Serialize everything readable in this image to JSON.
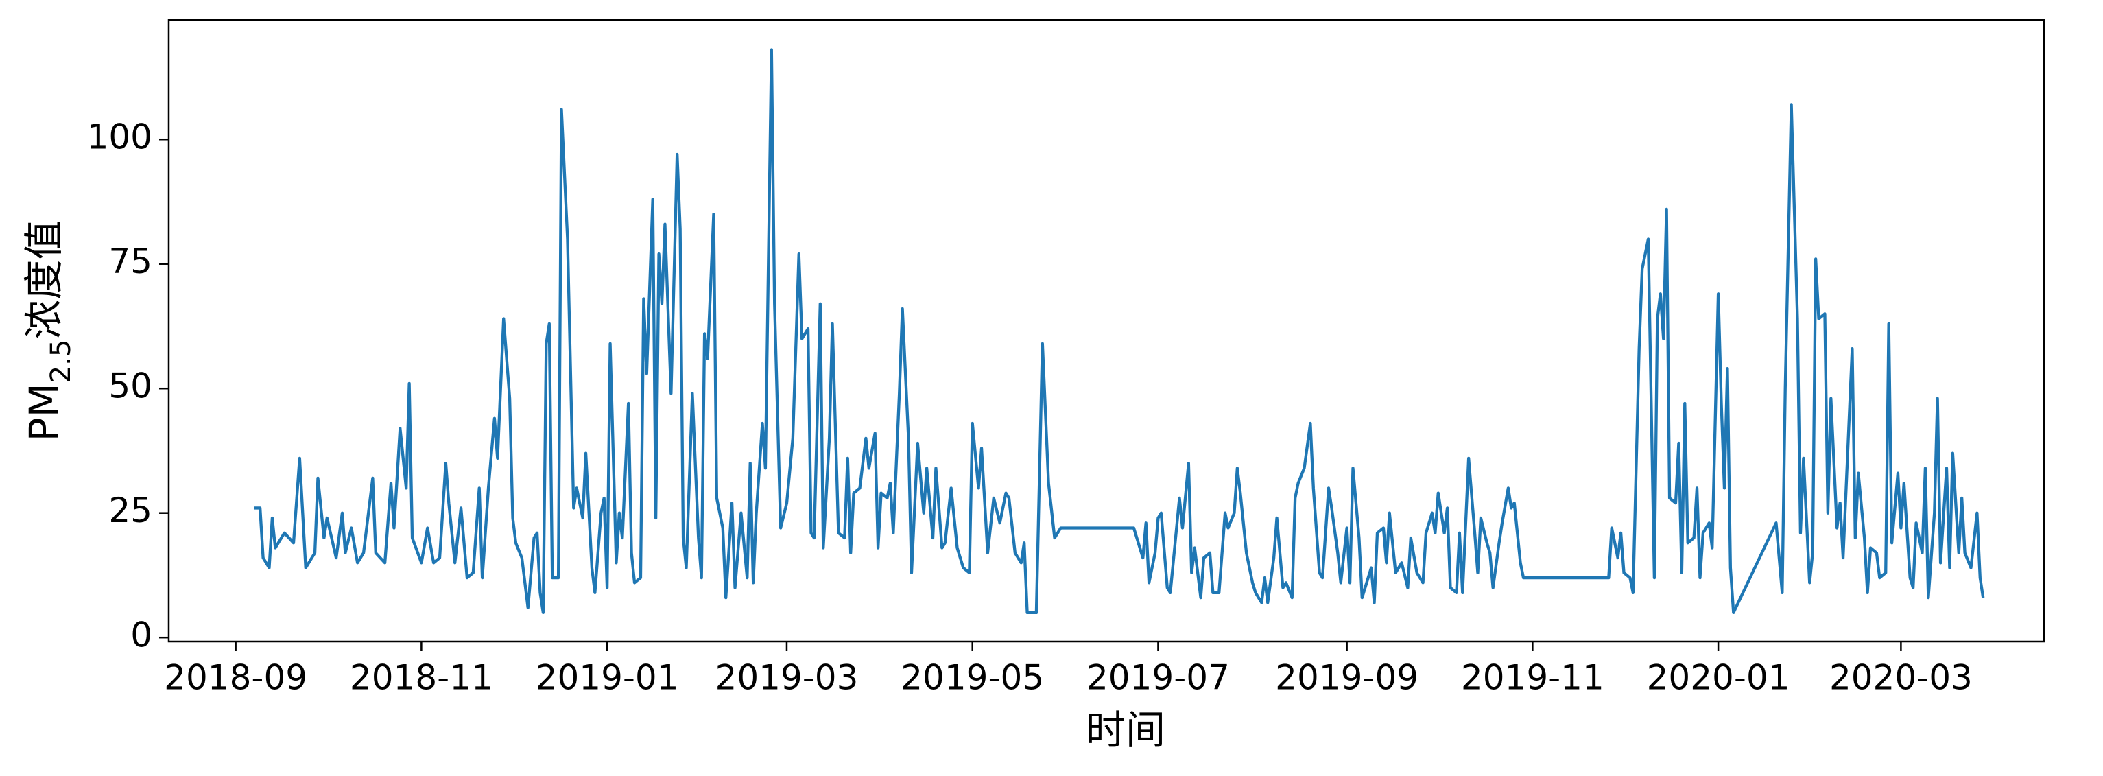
{
  "chart_data": {
    "type": "line",
    "xlabel": "时间",
    "ylabel_parts": [
      "PM",
      "2.5",
      "浓度值"
    ],
    "color": "#1f77b4",
    "xlim": [
      "2018-08-10",
      "2020-04-17"
    ],
    "xticks": [
      "2018-09",
      "2018-11",
      "2019-01",
      "2019-03",
      "2019-05",
      "2019-07",
      "2019-09",
      "2019-11",
      "2020-01",
      "2020-03"
    ],
    "ylim": [
      -0.8,
      124
    ],
    "yticks": [
      0,
      25,
      50,
      75,
      100
    ],
    "grid": false,
    "x": [
      "2018-09-07",
      "2018-09-09",
      "2018-09-10",
      "2018-09-12",
      "2018-09-13",
      "2018-09-14",
      "2018-09-17",
      "2018-09-20",
      "2018-09-22",
      "2018-09-24",
      "2018-09-27",
      "2018-09-28",
      "2018-09-30",
      "2018-10-01",
      "2018-10-04",
      "2018-10-06",
      "2018-10-07",
      "2018-10-09",
      "2018-10-11",
      "2018-10-13",
      "2018-10-16",
      "2018-10-17",
      "2018-10-20",
      "2018-10-22",
      "2018-10-23",
      "2018-10-25",
      "2018-10-27",
      "2018-10-28",
      "2018-10-29",
      "2018-11-01",
      "2018-11-03",
      "2018-11-05",
      "2018-11-07",
      "2018-11-09",
      "2018-11-10",
      "2018-11-12",
      "2018-11-14",
      "2018-11-16",
      "2018-11-18",
      "2018-11-20",
      "2018-11-21",
      "2018-11-23",
      "2018-11-25",
      "2018-11-26",
      "2018-11-28",
      "2018-11-30",
      "2018-12-01",
      "2018-12-02",
      "2018-12-04",
      "2018-12-06",
      "2018-12-08",
      "2018-12-09",
      "2018-12-10",
      "2018-12-11",
      "2018-12-12",
      "2018-12-13",
      "2018-12-14",
      "2018-12-16",
      "2018-12-17",
      "2018-12-19",
      "2018-12-21",
      "2018-12-22",
      "2018-12-24",
      "2018-12-25",
      "2018-12-27",
      "2018-12-28",
      "2018-12-30",
      "2018-12-31",
      "2019-01-01",
      "2019-01-02",
      "2019-01-04",
      "2019-01-05",
      "2019-01-06",
      "2019-01-08",
      "2019-01-09",
      "2019-01-10",
      "2019-01-12",
      "2019-01-13",
      "2019-01-14",
      "2019-01-16",
      "2019-01-17",
      "2019-01-18",
      "2019-01-19",
      "2019-01-20",
      "2019-01-22",
      "2019-01-24",
      "2019-01-25",
      "2019-01-26",
      "2019-01-27",
      "2019-01-29",
      "2019-01-31",
      "2019-02-01",
      "2019-02-02",
      "2019-02-03",
      "2019-02-05",
      "2019-02-06",
      "2019-02-08",
      "2019-02-09",
      "2019-02-11",
      "2019-02-12",
      "2019-02-14",
      "2019-02-16",
      "2019-02-17",
      "2019-02-18",
      "2019-02-19",
      "2019-02-21",
      "2019-02-22",
      "2019-02-24",
      "2019-02-25",
      "2019-02-27",
      "2019-03-01",
      "2019-03-03",
      "2019-03-05",
      "2019-03-06",
      "2019-03-08",
      "2019-03-09",
      "2019-03-10",
      "2019-03-12",
      "2019-03-13",
      "2019-03-15",
      "2019-03-16",
      "2019-03-18",
      "2019-03-20",
      "2019-03-21",
      "2019-03-22",
      "2019-03-23",
      "2019-03-25",
      "2019-03-27",
      "2019-03-28",
      "2019-03-30",
      "2019-03-31",
      "2019-04-01",
      "2019-04-03",
      "2019-04-04",
      "2019-04-05",
      "2019-04-07",
      "2019-04-08",
      "2019-04-10",
      "2019-04-11",
      "2019-04-13",
      "2019-04-15",
      "2019-04-16",
      "2019-04-18",
      "2019-04-19",
      "2019-04-21",
      "2019-04-22",
      "2019-04-24",
      "2019-04-26",
      "2019-04-28",
      "2019-04-30",
      "2019-05-01",
      "2019-05-03",
      "2019-05-04",
      "2019-05-06",
      "2019-05-08",
      "2019-05-10",
      "2019-05-12",
      "2019-05-13",
      "2019-05-15",
      "2019-05-17",
      "2019-05-18",
      "2019-05-19",
      "2019-05-22",
      "2019-05-24",
      "2019-05-26",
      "2019-05-28",
      "2019-05-30",
      "2019-06-23",
      "2019-06-24",
      "2019-06-26",
      "2019-06-27",
      "2019-06-28",
      "2019-06-30",
      "2019-07-01",
      "2019-07-02",
      "2019-07-04",
      "2019-07-05",
      "2019-07-08",
      "2019-07-09",
      "2019-07-11",
      "2019-07-12",
      "2019-07-13",
      "2019-07-15",
      "2019-07-16",
      "2019-07-18",
      "2019-07-19",
      "2019-07-21",
      "2019-07-23",
      "2019-07-24",
      "2019-07-26",
      "2019-07-27",
      "2019-07-28",
      "2019-07-30",
      "2019-08-01",
      "2019-08-02",
      "2019-08-04",
      "2019-08-05",
      "2019-08-06",
      "2019-08-08",
      "2019-08-09",
      "2019-08-11",
      "2019-08-12",
      "2019-08-14",
      "2019-08-15",
      "2019-08-16",
      "2019-08-18",
      "2019-08-20",
      "2019-08-21",
      "2019-08-23",
      "2019-08-24",
      "2019-08-26",
      "2019-08-27",
      "2019-08-29",
      "2019-08-30",
      "2019-09-01",
      "2019-09-02",
      "2019-09-03",
      "2019-09-05",
      "2019-09-06",
      "2019-09-07",
      "2019-09-09",
      "2019-09-10",
      "2019-09-11",
      "2019-09-13",
      "2019-09-14",
      "2019-09-15",
      "2019-09-17",
      "2019-09-19",
      "2019-09-21",
      "2019-09-22",
      "2019-09-24",
      "2019-09-26",
      "2019-09-27",
      "2019-09-29",
      "2019-09-30",
      "2019-10-01",
      "2019-10-03",
      "2019-10-04",
      "2019-10-05",
      "2019-10-07",
      "2019-10-08",
      "2019-10-09",
      "2019-10-11",
      "2019-10-13",
      "2019-10-14",
      "2019-10-15",
      "2019-10-17",
      "2019-10-18",
      "2019-10-19",
      "2019-10-21",
      "2019-10-22",
      "2019-10-24",
      "2019-10-25",
      "2019-10-26",
      "2019-10-28",
      "2019-10-29",
      "2019-11-26",
      "2019-11-27",
      "2019-11-29",
      "2019-11-30",
      "2019-12-01",
      "2019-12-03",
      "2019-12-04",
      "2019-12-06",
      "2019-12-07",
      "2019-12-09",
      "2019-12-11",
      "2019-12-12",
      "2019-12-13",
      "2019-12-14",
      "2019-12-15",
      "2019-12-16",
      "2019-12-18",
      "2019-12-19",
      "2019-12-20",
      "2019-12-21",
      "2019-12-22",
      "2019-12-24",
      "2019-12-25",
      "2019-12-26",
      "2019-12-27",
      "2019-12-29",
      "2019-12-30",
      "2020-01-01",
      "2020-01-02",
      "2020-01-03",
      "2020-01-04",
      "2020-01-05",
      "2020-01-06",
      "2020-01-20",
      "2020-01-22",
      "2020-01-23",
      "2020-01-25",
      "2020-01-27",
      "2020-01-28",
      "2020-01-29",
      "2020-01-31",
      "2020-02-01",
      "2020-02-02",
      "2020-02-03",
      "2020-02-05",
      "2020-02-06",
      "2020-02-07",
      "2020-02-09",
      "2020-02-10",
      "2020-02-11",
      "2020-02-12",
      "2020-02-14",
      "2020-02-15",
      "2020-02-16",
      "2020-02-18",
      "2020-02-19",
      "2020-02-20",
      "2020-02-22",
      "2020-02-23",
      "2020-02-25",
      "2020-02-26",
      "2020-02-27",
      "2020-02-29",
      "2020-03-01",
      "2020-03-02",
      "2020-03-04",
      "2020-03-05",
      "2020-03-06",
      "2020-03-08",
      "2020-03-09",
      "2020-03-10",
      "2020-03-12",
      "2020-03-13",
      "2020-03-14",
      "2020-03-16",
      "2020-03-17",
      "2020-03-18",
      "2020-03-20",
      "2020-03-21",
      "2020-03-22",
      "2020-03-24",
      "2020-03-26",
      "2020-03-27",
      "2020-03-28"
    ],
    "values": [
      26,
      26,
      16,
      14,
      24,
      18,
      21,
      19,
      36,
      14,
      17,
      32,
      20,
      24,
      16,
      25,
      17,
      22,
      15,
      17,
      32,
      17,
      15,
      31,
      22,
      42,
      30,
      51,
      20,
      15,
      22,
      15,
      16,
      35,
      27,
      15,
      26,
      12,
      13,
      30,
      12,
      30,
      44,
      36,
      64,
      48,
      24,
      19,
      16,
      6,
      20,
      21,
      9,
      5,
      59,
      63,
      12,
      12,
      106,
      80,
      26,
      30,
      24,
      37,
      14,
      9,
      25,
      28,
      10,
      59,
      15,
      25,
      20,
      47,
      17,
      11,
      12,
      68,
      53,
      88,
      24,
      77,
      67,
      83,
      49,
      97,
      82,
      20,
      14,
      49,
      20,
      12,
      61,
      56,
      85,
      28,
      22,
      8,
      27,
      10,
      25,
      12,
      35,
      11,
      25,
      43,
      34,
      118,
      67,
      22,
      27,
      40,
      77,
      60,
      62,
      21,
      20,
      67,
      18,
      40,
      63,
      21,
      20,
      36,
      17,
      29,
      30,
      40,
      34,
      41,
      18,
      29,
      28,
      31,
      21,
      49,
      66,
      40,
      13,
      39,
      25,
      34,
      20,
      34,
      18,
      19,
      30,
      18,
      14,
      13,
      43,
      30,
      38,
      17,
      28,
      23,
      29,
      28,
      17,
      15,
      19,
      5,
      5,
      59,
      31,
      20,
      22,
      22,
      20,
      16,
      23,
      11,
      17,
      24,
      25,
      10,
      9,
      28,
      22,
      35,
      13,
      18,
      8,
      16,
      17,
      9,
      9,
      25,
      22,
      25,
      34,
      29,
      17,
      11,
      9,
      7,
      12,
      7,
      16,
      24,
      10,
      11,
      8,
      28,
      31,
      34,
      43,
      30,
      13,
      12,
      30,
      26,
      17,
      11,
      22,
      11,
      34,
      20,
      8,
      10,
      14,
      7,
      21,
      22,
      15,
      25,
      13,
      15,
      10,
      20,
      13,
      11,
      21,
      25,
      21,
      29,
      21,
      26,
      10,
      9,
      21,
      9,
      36,
      21,
      13,
      24,
      19,
      17,
      10,
      19,
      23,
      30,
      26,
      27,
      15,
      12,
      12,
      22,
      16,
      21,
      13,
      12,
      9,
      58,
      74,
      80,
      12,
      64,
      69,
      60,
      86,
      28,
      27,
      39,
      13,
      47,
      19,
      20,
      30,
      12,
      21,
      23,
      18,
      69,
      47,
      30,
      54,
      14,
      5,
      23,
      9,
      50,
      107,
      64,
      21,
      36,
      11,
      17,
      76,
      64,
      65,
      25,
      48,
      22,
      27,
      16,
      30,
      58,
      20,
      33,
      20,
      9,
      18,
      17,
      12,
      13,
      63,
      19,
      33,
      22,
      31,
      12,
      10,
      23,
      17,
      34,
      8,
      25,
      48,
      15,
      34,
      14,
      37,
      17,
      28,
      17,
      14,
      25,
      12,
      8
    ]
  }
}
